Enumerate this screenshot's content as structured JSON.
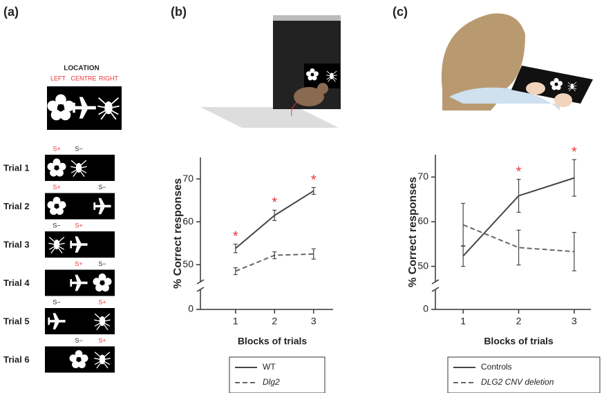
{
  "panel_labels": [
    "(a)",
    "(b)",
    "(c)"
  ],
  "panel_a": {
    "heading": "LOCATION",
    "locations": [
      "LEFT",
      "CENTRE",
      "RIGHT"
    ],
    "trials": [
      {
        "label": "Trial 1",
        "markers": [
          "S+",
          "S−"
        ]
      },
      {
        "label": "Trial 2",
        "markers": [
          "S+",
          "S−"
        ]
      },
      {
        "label": "Trial 3",
        "markers": [
          "S−",
          "S+"
        ]
      },
      {
        "label": "Trial 4",
        "markers": [
          "S+",
          "S−"
        ]
      },
      {
        "label": "Trial 5",
        "markers": [
          "S−",
          "S+"
        ]
      },
      {
        "label": "Trial 6",
        "markers": [
          "S−",
          "S+"
        ]
      }
    ]
  },
  "chart_data": [
    {
      "type": "line",
      "x_label": "Blocks of trials",
      "y_label": "% Correct responses",
      "x": [
        1,
        2,
        3
      ],
      "xlim": [
        0.1,
        3.5
      ],
      "xticks": [
        1,
        2,
        3
      ],
      "ylim": [
        46.5,
        75
      ],
      "yticks": [
        0,
        50,
        60,
        70
      ],
      "axis_break": true,
      "series": [
        {
          "name": "WT",
          "color": "#444444",
          "dashed": false,
          "values": [
            53.8,
            61.5,
            67.2
          ],
          "errors": [
            1.0,
            1.2,
            0.8
          ]
        },
        {
          "name": "Dlg2",
          "color": "#666666",
          "dashed": true,
          "values": [
            48.5,
            52.2,
            52.5
          ],
          "errors": [
            0.8,
            0.8,
            1.2
          ]
        }
      ],
      "significance_marker": "*",
      "significant_x": [
        1,
        2,
        3
      ]
    },
    {
      "type": "line",
      "x_label": "Blocks of trials",
      "y_label": "% Correct responses",
      "x": [
        1,
        2,
        3
      ],
      "xlim": [
        0.5,
        3.3
      ],
      "xticks": [
        1,
        2,
        3
      ],
      "ylim": [
        47,
        75
      ],
      "yticks": [
        0,
        50,
        60,
        70
      ],
      "axis_break": true,
      "series": [
        {
          "name": "Controls",
          "color": "#444444",
          "dashed": false,
          "values": [
            52.3,
            65.8,
            69.8
          ],
          "errors": [
            2.3,
            3.7,
            4.1
          ]
        },
        {
          "name": "DLG2 CNV deletion",
          "color": "#666666",
          "dashed": true,
          "values": [
            59.3,
            54.2,
            53.3
          ],
          "errors": [
            4.8,
            3.9,
            4.3
          ]
        }
      ],
      "significance_marker": "*",
      "significant_x": [
        2,
        3
      ]
    }
  ]
}
